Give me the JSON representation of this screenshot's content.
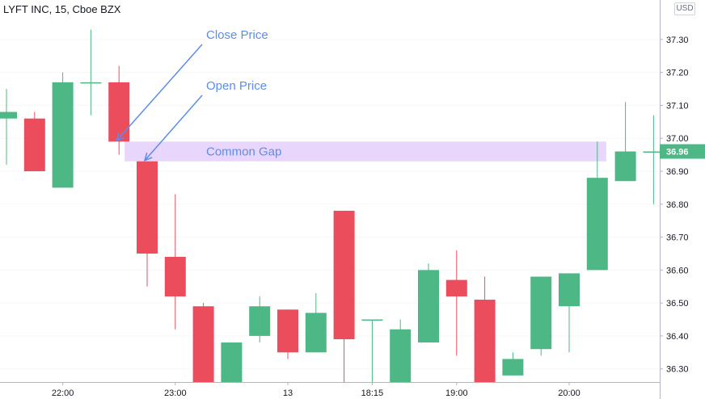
{
  "chart_data": {
    "type": "candlestick",
    "title": "LYFT INC, 15, Cboe BZX",
    "currency": "USD",
    "ylim": [
      36.26,
      37.41
    ],
    "y_ticks": [
      {
        "value": 37.3,
        "label": "37.30"
      },
      {
        "value": 37.2,
        "label": "37.20"
      },
      {
        "value": 37.1,
        "label": "37.10"
      },
      {
        "value": 37.0,
        "label": "37.00"
      },
      {
        "value": 36.9,
        "label": "36.90"
      },
      {
        "value": 36.8,
        "label": "36.80"
      },
      {
        "value": 36.7,
        "label": "36.70"
      },
      {
        "value": 36.6,
        "label": "36.60"
      },
      {
        "value": 36.5,
        "label": "36.50"
      },
      {
        "value": 36.4,
        "label": "36.40"
      },
      {
        "value": 36.3,
        "label": "36.30"
      }
    ],
    "x_ticks": [
      {
        "index": 2,
        "label": "22:00"
      },
      {
        "index": 6,
        "label": "23:00"
      },
      {
        "index": 10,
        "label": "13"
      },
      {
        "index": 13,
        "label": "18:15"
      },
      {
        "index": 16,
        "label": "19:00"
      },
      {
        "index": 20,
        "label": "20:00"
      }
    ],
    "candles": [
      {
        "open": 37.06,
        "high": 37.15,
        "low": 36.92,
        "close": 37.08
      },
      {
        "open": 37.06,
        "high": 37.08,
        "low": 36.9,
        "close": 36.9
      },
      {
        "open": 36.85,
        "high": 37.2,
        "low": 36.85,
        "close": 37.17
      },
      {
        "open": 37.17,
        "high": 37.33,
        "low": 37.07,
        "close": 37.17
      },
      {
        "open": 37.17,
        "high": 37.22,
        "low": 36.95,
        "close": 36.99
      },
      {
        "open": 36.93,
        "high": 36.93,
        "low": 36.55,
        "close": 36.65
      },
      {
        "open": 36.64,
        "high": 36.83,
        "low": 36.42,
        "close": 36.52
      },
      {
        "open": 36.49,
        "high": 36.5,
        "low": 36.2,
        "close": 36.2
      },
      {
        "open": 36.2,
        "high": 36.38,
        "low": 36.2,
        "close": 36.38
      },
      {
        "open": 36.4,
        "high": 36.52,
        "low": 36.38,
        "close": 36.49
      },
      {
        "open": 36.48,
        "high": 36.48,
        "low": 36.33,
        "close": 36.35
      },
      {
        "open": 36.35,
        "high": 36.53,
        "low": 36.35,
        "close": 36.47
      },
      {
        "open": 36.78,
        "high": 36.78,
        "low": 36.2,
        "close": 36.39
      },
      {
        "open": 36.45,
        "high": 36.45,
        "low": 36.2,
        "close": 36.45
      },
      {
        "open": 36.2,
        "high": 36.45,
        "low": 36.2,
        "close": 36.42
      },
      {
        "open": 36.38,
        "high": 36.62,
        "low": 36.38,
        "close": 36.6
      },
      {
        "open": 36.57,
        "high": 36.66,
        "low": 36.34,
        "close": 36.52
      },
      {
        "open": 36.51,
        "high": 36.58,
        "low": 36.2,
        "close": 36.2
      },
      {
        "open": 36.28,
        "high": 36.35,
        "low": 36.28,
        "close": 36.33
      },
      {
        "open": 36.36,
        "high": 36.58,
        "low": 36.34,
        "close": 36.58
      },
      {
        "open": 36.49,
        "high": 36.59,
        "low": 36.35,
        "close": 36.59
      },
      {
        "open": 36.6,
        "high": 36.99,
        "low": 36.6,
        "close": 36.88
      },
      {
        "open": 36.87,
        "high": 37.11,
        "low": 36.87,
        "close": 36.96
      },
      {
        "open": 36.96,
        "high": 37.07,
        "low": 36.8,
        "close": 36.96
      }
    ],
    "last_price": {
      "value": 36.96,
      "label": "36.96"
    },
    "colors": {
      "up": "#4db885",
      "down": "#ec4d5d",
      "annotation": "#5b8dee",
      "gap_fill": "#e8d6fc",
      "grid": "#e6e7ea"
    },
    "annotations": {
      "close_price": {
        "label": "Close Price",
        "candle_index": 4,
        "price": 36.99
      },
      "open_price": {
        "label": "Open Price",
        "candle_index": 5,
        "price": 36.93
      },
      "common_gap": {
        "label": "Common Gap",
        "from_index": 4,
        "to_index": 21,
        "low": 36.93,
        "high": 36.99
      }
    }
  }
}
